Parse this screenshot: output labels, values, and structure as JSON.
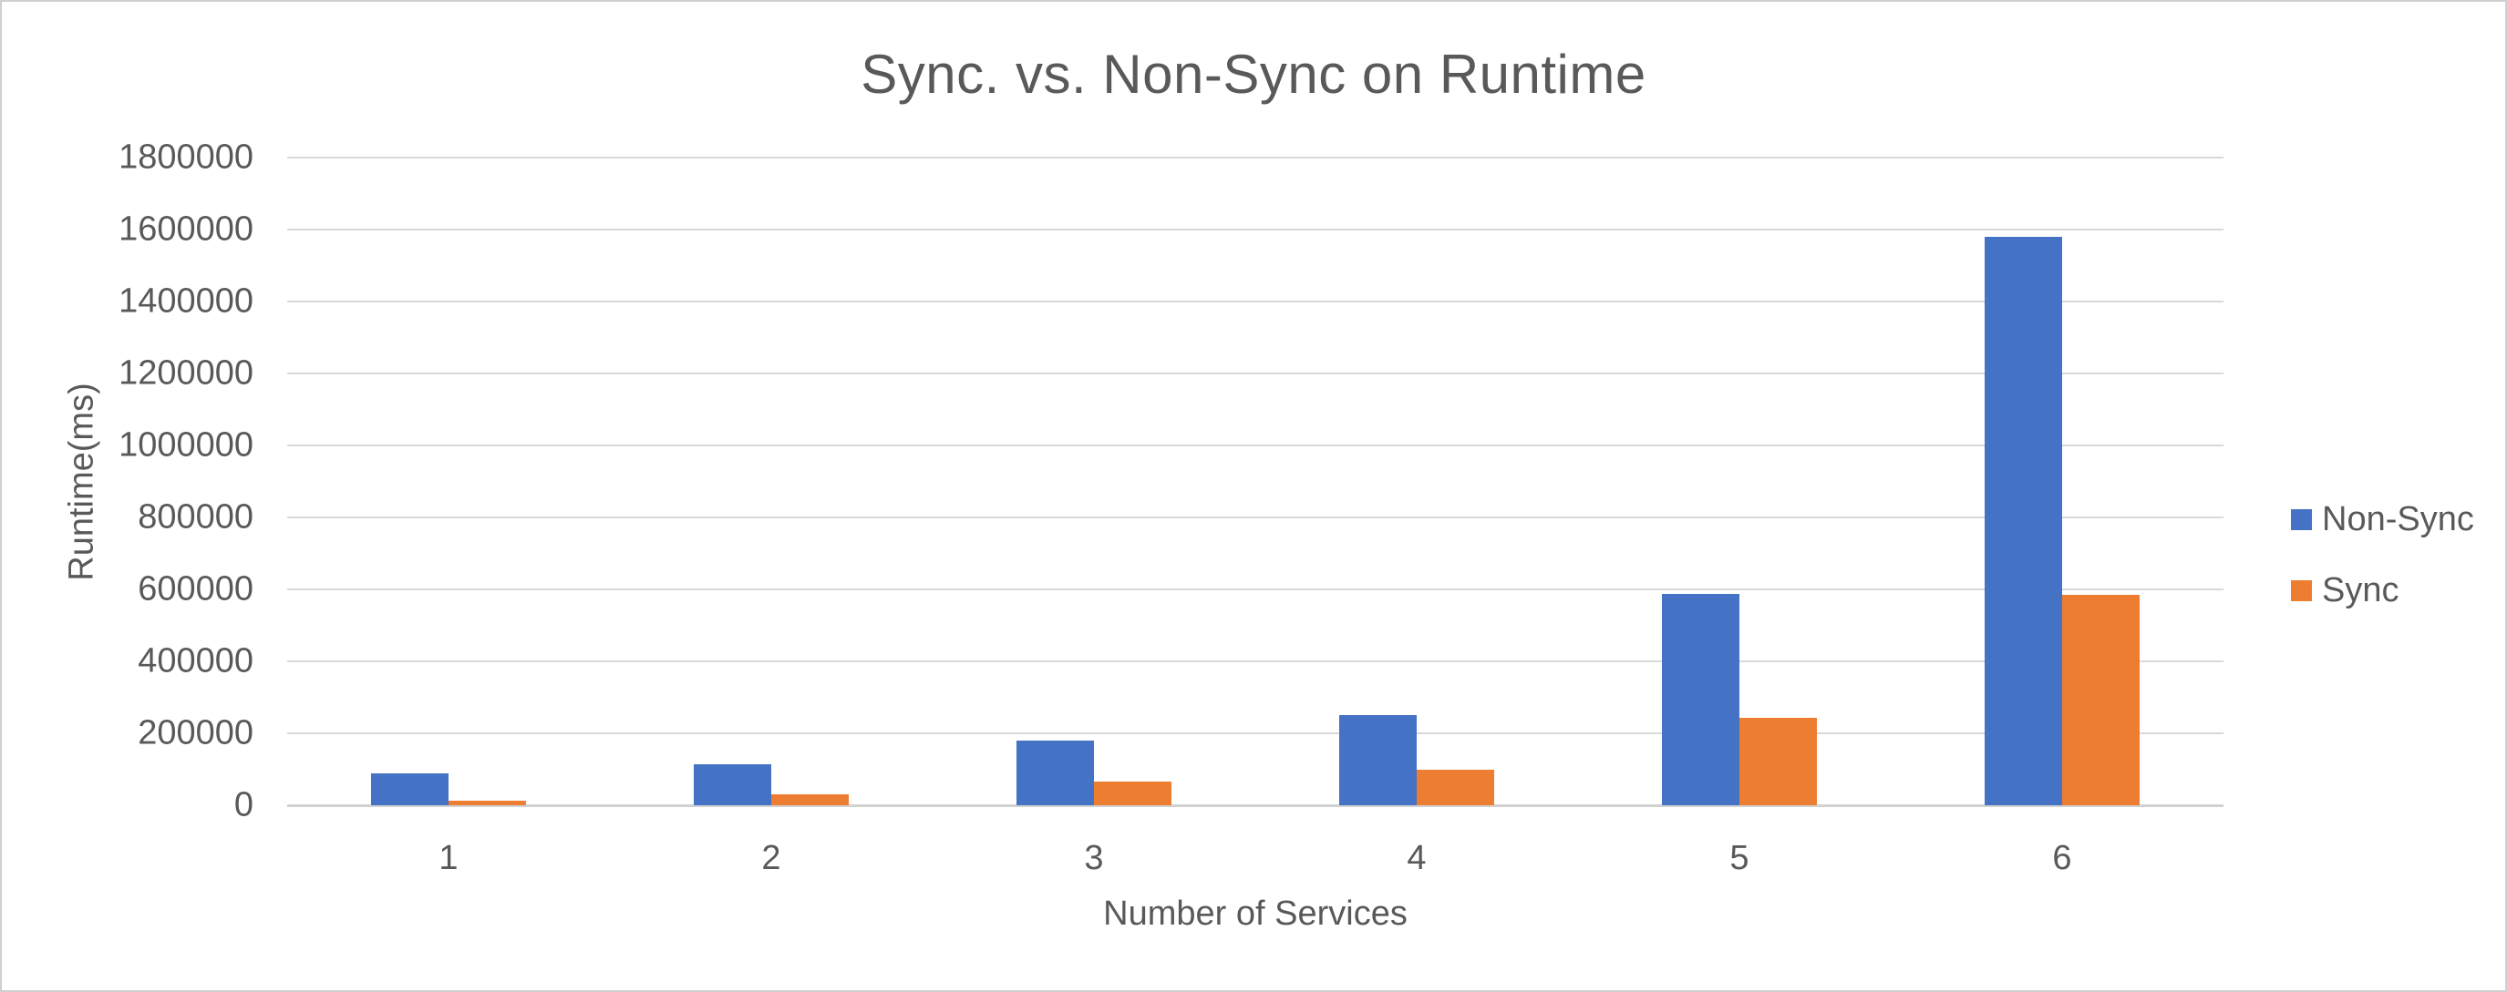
{
  "chart_data": {
    "type": "bar",
    "title": "Sync. vs. Non-Sync on Runtime",
    "xlabel": "Number of Services",
    "ylabel": "Runtime(ms)",
    "categories": [
      "1",
      "2",
      "3",
      "4",
      "5",
      "6"
    ],
    "series": [
      {
        "name": "Non-Sync",
        "color": "#4472C4",
        "values": [
          88000,
          115000,
          181000,
          250000,
          587000,
          1580000
        ]
      },
      {
        "name": "Sync",
        "color": "#ED7D31",
        "values": [
          13000,
          30000,
          66000,
          100000,
          243000,
          584000
        ]
      }
    ],
    "ylim": [
      0,
      1800000
    ],
    "ytick_step": 200000,
    "ytick_labels": [
      "0",
      "200000",
      "400000",
      "600000",
      "800000",
      "1000000",
      "1200000",
      "1400000",
      "1600000",
      "1800000"
    ],
    "grid": true,
    "legend_position": "right"
  },
  "style": {
    "text_color": "#595959",
    "gridline_color": "#D9D9D9",
    "axis_line_color": "#D2D2D2",
    "background": "#FFFFFF",
    "border_color": "#CFCFCF"
  }
}
